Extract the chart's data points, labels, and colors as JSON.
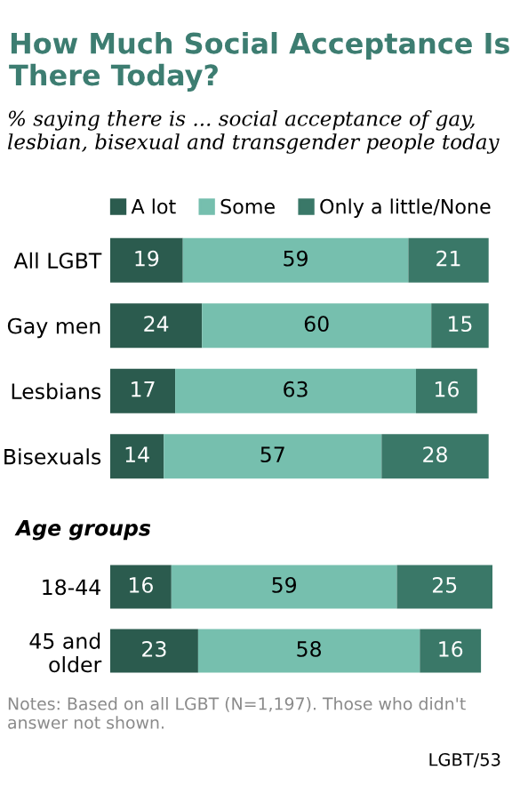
{
  "chart_data": [
    {
      "type": "bar",
      "orientation": "horizontal",
      "stacked": true,
      "title": "How Much Social Acceptance Is There Today?",
      "subtitle": "% saying there is ... social acceptance of gay, lesbian, bisexual and transgender people today",
      "categories": [
        "All LGBT",
        "Gay men",
        "Lesbians",
        "Bisexuals"
      ],
      "series": [
        {
          "name": "A lot",
          "color": "#2b5b4e",
          "values": [
            19,
            24,
            17,
            14
          ]
        },
        {
          "name": "Some",
          "color": "#76bfae",
          "values": [
            59,
            60,
            63,
            57
          ]
        },
        {
          "name": "Only a little/None",
          "color": "#3a7868",
          "values": [
            21,
            15,
            16,
            28
          ]
        }
      ],
      "xlim": [
        0,
        100
      ],
      "tick_labels": "y",
      "data_labels": true,
      "legend": "top",
      "grid": false
    },
    {
      "type": "bar",
      "orientation": "horizontal",
      "stacked": true,
      "title": "Age groups",
      "categories": [
        "18-44",
        "45 and\nolder"
      ],
      "series": [
        {
          "color": "#2b5b4e",
          "values": [
            16,
            23
          ]
        },
        {
          "color": "#76bfae",
          "values": [
            59,
            58
          ]
        },
        {
          "color": "#3a7868",
          "values": [
            25,
            16
          ]
        }
      ],
      "xlim": [
        0,
        100
      ],
      "tick_labels": "y",
      "data_labels": true,
      "grid": false,
      "annotations": [
        "Notes: Based on all LGBT (N=1,197). Those who didn't answer not shown.",
        "LGBT/53"
      ]
    }
  ]
}
